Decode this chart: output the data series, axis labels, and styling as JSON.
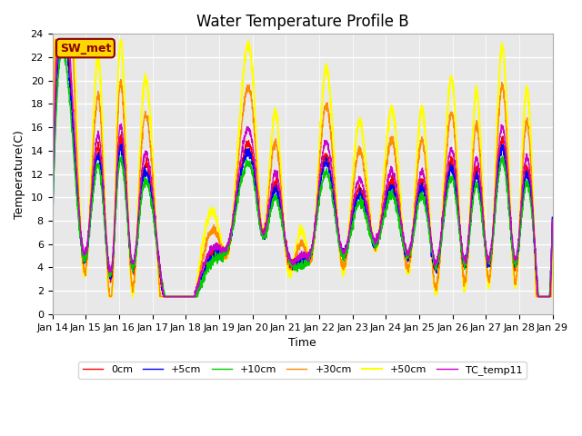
{
  "title": "Water Temperature Profile B",
  "xlabel": "Time",
  "ylabel": "Temperature(C)",
  "ylim": [
    0,
    24
  ],
  "yticks": [
    0,
    2,
    4,
    6,
    8,
    10,
    12,
    14,
    16,
    18,
    20,
    22,
    24
  ],
  "xlabels": [
    "Jan 14",
    "Jan 15",
    "Jan 16",
    "Jan 17",
    "Jan 18",
    "Jan 19",
    "Jan 20",
    "Jan 21",
    "Jan 22",
    "Jan 23",
    "Jan 24",
    "Jan 25",
    "Jan 26",
    "Jan 27",
    "Jan 28",
    "Jan 29"
  ],
  "annotation_text": "SW_met",
  "annotation_color": "#8B0000",
  "annotation_bg": "#FFD700",
  "series_labels": [
    "0cm",
    "+5cm",
    "+10cm",
    "+30cm",
    "+50cm",
    "TC_temp11"
  ],
  "series_colors": [
    "#FF0000",
    "#0000FF",
    "#00CC00",
    "#FF8C00",
    "#FFFF00",
    "#CC00CC"
  ],
  "series_linewidths": [
    1.0,
    1.0,
    1.0,
    1.0,
    1.5,
    1.0
  ],
  "background_color": "#E8E8E8",
  "grid_color": "#FFFFFF",
  "title_fontsize": 12,
  "label_fontsize": 9,
  "tick_fontsize": 8,
  "spike_times": [
    0.7,
    1.4,
    2.0,
    2.7,
    4.9,
    6.0,
    6.7,
    7.5,
    8.2,
    9.2,
    10.2,
    11.1,
    12.0,
    12.7,
    13.5,
    14.2
  ],
  "spike_heights_yellow": [
    19.5,
    21.7,
    22.0,
    18.0,
    8.3,
    20.9,
    17.3,
    7.2,
    21.0,
    16.5,
    17.5,
    17.5,
    20.0,
    19.0,
    23.0,
    19.0
  ],
  "base_level": 7.5,
  "trough_times": [
    1.0,
    1.8,
    2.4,
    3.2,
    5.3,
    6.3,
    7.0,
    7.8,
    8.7,
    9.7,
    10.7,
    11.5,
    12.4,
    13.1,
    13.9,
    14.5
  ],
  "trough_levels_yellow": [
    3.5,
    2.0,
    1.8,
    2.5,
    5.5,
    7.0,
    5.5,
    5.0,
    3.8,
    5.5,
    3.8,
    1.8,
    2.5,
    2.5,
    2.5,
    2.5
  ]
}
